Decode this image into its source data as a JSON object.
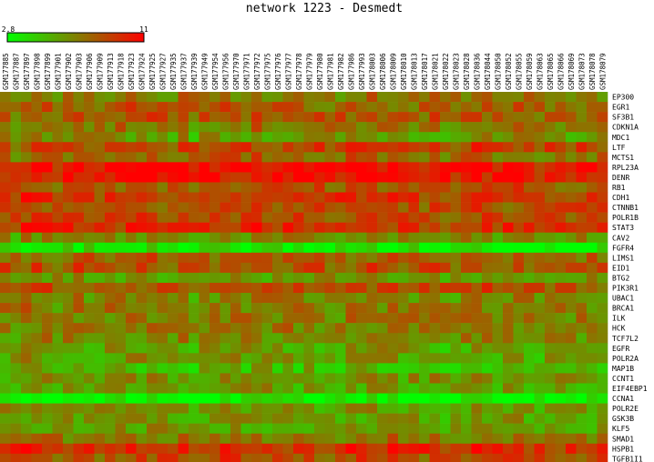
{
  "chart_data": {
    "type": "heatmap",
    "title": "network 1223 - Desmedt",
    "colorbar": {
      "min_label": "2.8",
      "max_label": "11",
      "min": 2.8,
      "max": 11,
      "low_color": "#00ff00",
      "mid_color": "#808000",
      "high_color": "#ff0000"
    },
    "columns": [
      "GSM177885",
      "GSM177887",
      "GSM177897",
      "GSM177898",
      "GSM177899",
      "GSM177901",
      "GSM177902",
      "GSM177903",
      "GSM177906",
      "GSM177909",
      "GSM177913",
      "GSM177918",
      "GSM177923",
      "GSM177924",
      "GSM177925",
      "GSM177927",
      "GSM177935",
      "GSM177937",
      "GSM177939",
      "GSM177949",
      "GSM177954",
      "GSM177956",
      "GSM177970",
      "GSM177971",
      "GSM177972",
      "GSM177975",
      "GSM177976",
      "GSM177977",
      "GSM177978",
      "GSM177979",
      "GSM177980",
      "GSM177981",
      "GSM177982",
      "GSM177986",
      "GSM177993",
      "GSM178003",
      "GSM178006",
      "GSM178009",
      "GSM178010",
      "GSM178013",
      "GSM178017",
      "GSM178021",
      "GSM178022",
      "GSM178023",
      "GSM178028",
      "GSM178036",
      "GSM178044",
      "GSM178050",
      "GSM178052",
      "GSM178055",
      "GSM178059",
      "GSM178063",
      "GSM178065",
      "GSM178066",
      "GSM178069",
      "GSM178073",
      "GSM178078",
      "GSM178079"
    ],
    "rows": [
      "EP300",
      "EGR1",
      "SF3B1",
      "CDKN1A",
      "MDC1",
      "LTF",
      "MCTS1",
      "RPL23A",
      "DENR",
      "RB1",
      "CDH1",
      "CTNNB1",
      "POLR1B",
      "STAT3",
      "CAV2",
      "FGFR4",
      "LIMS1",
      "EID1",
      "BTG2",
      "PIK3R1",
      "UBAC1",
      "BRCA1",
      "ILK",
      "HCK",
      "TCF7L2",
      "EGFR",
      "POLR2A",
      "MAP1B",
      "CCNT1",
      "EIF4EBP1",
      "CCNA1",
      "POLR2E",
      "GSK3B",
      "KLF5",
      "SMAD1",
      "HSPB1",
      "TGFB1I1"
    ],
    "row_means": [
      0.55,
      0.62,
      0.66,
      0.55,
      0.42,
      0.72,
      0.62,
      0.93,
      0.92,
      0.68,
      0.8,
      0.7,
      0.72,
      0.82,
      0.45,
      0.1,
      0.6,
      0.68,
      0.42,
      0.7,
      0.48,
      0.52,
      0.52,
      0.52,
      0.48,
      0.38,
      0.4,
      0.3,
      0.42,
      0.38,
      0.05,
      0.42,
      0.4,
      0.4,
      0.55,
      0.82,
      0.7
    ],
    "col_offsets": [
      0.0,
      -0.06,
      0.04,
      0.05,
      0.02,
      -0.03,
      0.0,
      0.03,
      0.02,
      -0.02,
      0.02,
      0.01,
      0.04,
      0.02,
      0.05,
      0.0,
      0.0,
      0.02,
      -0.05,
      0.03,
      0.01,
      0.05,
      0.01,
      0.02,
      0.04,
      0.02,
      0.0,
      0.01,
      0.0,
      0.01,
      0.0,
      -0.03,
      -0.02,
      0.02,
      0.01,
      0.04,
      0.03,
      0.02,
      0.0,
      0.0,
      -0.02,
      0.03,
      -0.05,
      -0.02,
      0.01,
      0.05,
      0.0,
      -0.06,
      -0.01,
      0.03,
      0.01,
      -0.04,
      -0.02,
      -0.02,
      -0.02,
      0.0,
      -0.01,
      -0.03
    ],
    "value_scale": "normalized 0 (2.8, green) to 1 (11, red)"
  }
}
